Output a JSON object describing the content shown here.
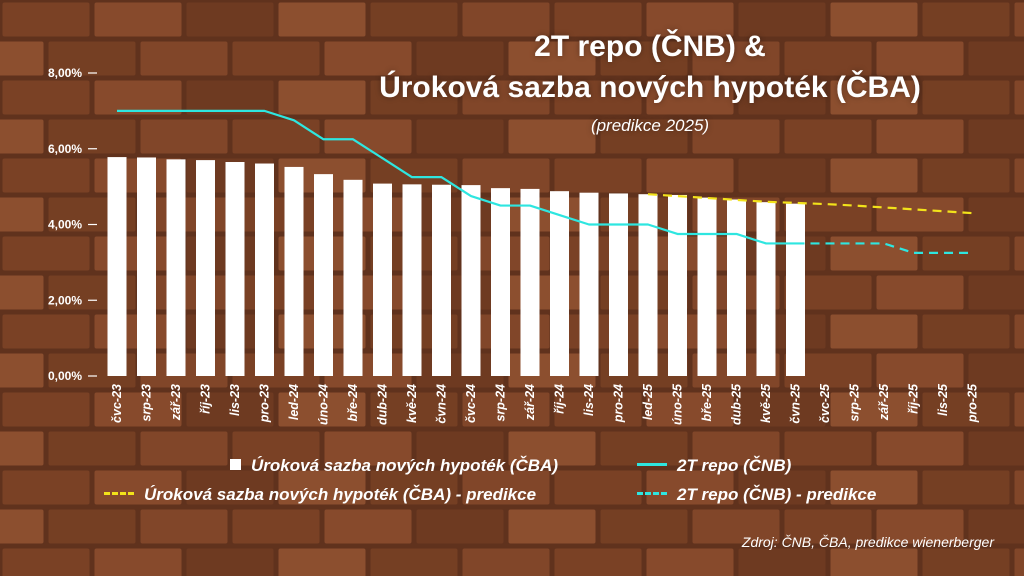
{
  "title_line1": "2T repo (ČNB) &",
  "title_line2": "Úroková sazba nových hypoték (ČBA)",
  "subtitle": "(predikce 2025)",
  "source": "Zdroj: ČNB, ČBA, predikce wienerberger",
  "colors": {
    "bars": "#ffffff",
    "repo": "#2ee6e0",
    "mortgage_forecast": "#f2e21a",
    "repo_forecast": "#2ee6e0",
    "background_brick": "#8a4a2a"
  },
  "legend": [
    {
      "label": "Úroková sazba nových hypoték (ČBA)",
      "style": "box"
    },
    {
      "label": "2T repo (ČNB)",
      "style": "line"
    },
    {
      "label": "Úroková sazba nových hypoték (ČBA) - predikce",
      "style": "dash-yellow"
    },
    {
      "label": "2T repo (ČNB) - predikce",
      "style": "dash-cyan"
    }
  ],
  "chart_data": {
    "type": "bar",
    "categories": [
      "čvc-23",
      "srp-23",
      "zář-23",
      "říj-23",
      "lis-23",
      "pro-23",
      "led-24",
      "úno-24",
      "bře-24",
      "dub-24",
      "kvě-24",
      "čvn-24",
      "čvc-24",
      "srp-24",
      "zář-24",
      "říj-24",
      "lis-24",
      "pro-24",
      "led-25",
      "úno-25",
      "bře-25",
      "dub-25",
      "kvě-25",
      "čvn-25",
      "čvc-25",
      "srp-25",
      "zář-25",
      "říj-25",
      "lis-25",
      "pro-25"
    ],
    "ylim": [
      0,
      8
    ],
    "yticks": [
      "0,00%",
      "2,00%",
      "4,00%",
      "6,00%",
      "8,00%"
    ],
    "series": [
      {
        "name": "Úroková sazba nových hypoték (ČBA)",
        "kind": "bar",
        "values": [
          5.78,
          5.77,
          5.72,
          5.7,
          5.65,
          5.61,
          5.52,
          5.33,
          5.18,
          5.08,
          5.06,
          5.05,
          5.04,
          4.96,
          4.94,
          4.88,
          4.84,
          4.82,
          4.8,
          4.78,
          4.71,
          4.66,
          4.59,
          4.55,
          null,
          null,
          null,
          null,
          null,
          null
        ]
      },
      {
        "name": "2T repo (ČNB)",
        "kind": "line",
        "values": [
          7.0,
          7.0,
          7.0,
          7.0,
          7.0,
          7.0,
          6.75,
          6.25,
          6.25,
          5.75,
          5.25,
          5.25,
          4.75,
          4.5,
          4.5,
          4.25,
          4.0,
          4.0,
          4.0,
          3.75,
          3.75,
          3.75,
          3.5,
          3.5,
          null,
          null,
          null,
          null,
          null,
          null
        ]
      },
      {
        "name": "Úroková sazba nových hypoték (ČBA) - predikce",
        "kind": "dash",
        "values": [
          null,
          null,
          null,
          null,
          null,
          null,
          null,
          null,
          null,
          null,
          null,
          null,
          null,
          null,
          null,
          null,
          null,
          null,
          4.8,
          4.75,
          4.7,
          4.65,
          4.6,
          4.57,
          4.54,
          4.5,
          4.45,
          4.4,
          4.35,
          4.3
        ]
      },
      {
        "name": "2T repo (ČNB) - predikce",
        "kind": "dash",
        "values": [
          null,
          null,
          null,
          null,
          null,
          null,
          null,
          null,
          null,
          null,
          null,
          null,
          null,
          null,
          null,
          null,
          null,
          null,
          null,
          null,
          null,
          null,
          null,
          3.5,
          3.5,
          3.5,
          3.5,
          3.25,
          3.25,
          3.25
        ]
      }
    ]
  }
}
